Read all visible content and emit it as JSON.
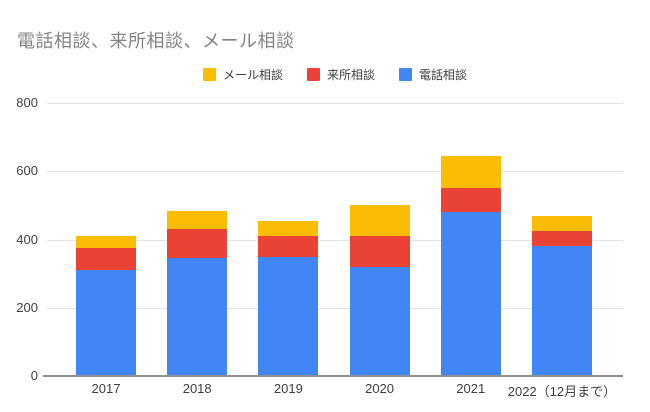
{
  "chart": {
    "title": "電話相談、来所相談、メール相談"
  },
  "chart_data": {
    "type": "bar",
    "stacked": true,
    "title": "電話相談、来所相談、メール相談",
    "categories": [
      "2017",
      "2018",
      "2019",
      "2020",
      "2021",
      "2022（12月まで）"
    ],
    "series": [
      {
        "name": "電話相談",
        "color": "#4285F4",
        "values": [
          310,
          345,
          350,
          320,
          480,
          380
        ]
      },
      {
        "name": "来所相談",
        "color": "#EA4335",
        "values": [
          65,
          85,
          60,
          90,
          70,
          45
        ]
      },
      {
        "name": "メール相談",
        "color": "#FBBC04",
        "values": [
          35,
          55,
          45,
          90,
          95,
          45
        ]
      }
    ],
    "totals": [
      410,
      485,
      455,
      500,
      645,
      470
    ],
    "xlabel": "",
    "ylabel": "",
    "y_axis": {
      "min": 0,
      "max": 800,
      "ticks": [
        0,
        200,
        400,
        600,
        800
      ]
    },
    "legend": {
      "position": "top",
      "order": [
        "メール相談",
        "来所相談",
        "電話相談"
      ]
    },
    "grid": true
  },
  "colors": {
    "phone_blue": "#4285F4",
    "visit_red": "#EA4335",
    "mail_yellow": "#FBBC04",
    "title_gray": "#848484",
    "axis_label": "#3c4043",
    "gridline": "#e3e3e3",
    "baseline": "#8f8f8f",
    "background": "#ffffff"
  }
}
